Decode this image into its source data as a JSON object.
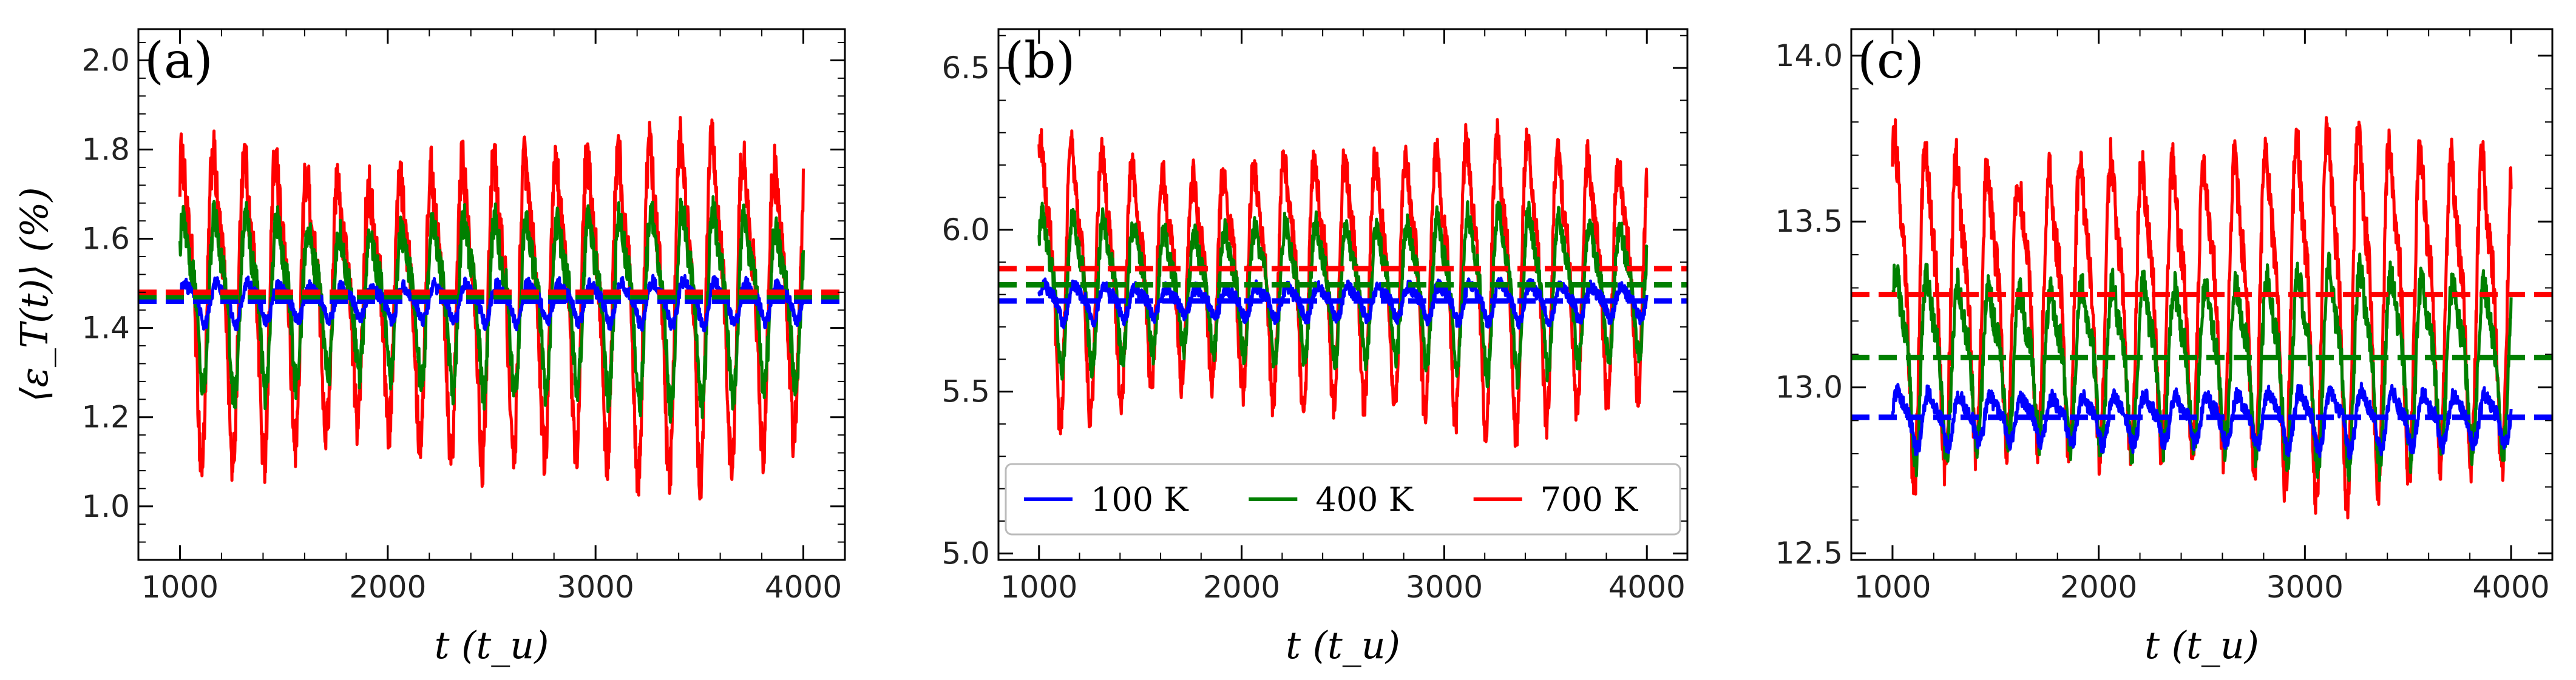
{
  "chart_data": [
    {
      "type": "line",
      "panel_label": "(a)",
      "xlabel": "t (t_u)",
      "ylabel": "⟨ε_T(t)⟩ (%)",
      "xlim": [
        800,
        4200
      ],
      "ylim": [
        0.88,
        2.07
      ],
      "xticks": [
        1000,
        2000,
        3000,
        4000
      ],
      "yticks": [
        1.0,
        1.2,
        1.4,
        1.6,
        1.8,
        2.0
      ],
      "ytick_labels": [
        "1.0",
        "1.2",
        "1.4",
        "1.6",
        "1.8",
        "2.0"
      ],
      "x_range": [
        1000,
        4000
      ],
      "period": 150,
      "series": [
        {
          "name": "100 K",
          "color": "#0000ff",
          "mean": 1.46,
          "amplitude": 0.05,
          "noise": 0.015
        },
        {
          "name": "400 K",
          "color": "#008000",
          "mean": 1.47,
          "amplitude": 0.22,
          "noise": 0.04
        },
        {
          "name": "700 K",
          "color": "#ff0000",
          "mean": 1.48,
          "amplitude": 0.38,
          "noise": 0.06
        }
      ]
    },
    {
      "type": "line",
      "panel_label": "(b)",
      "xlabel": "t (t_u)",
      "ylabel": "",
      "xlim": [
        800,
        4200
      ],
      "ylim": [
        4.98,
        6.62
      ],
      "xticks": [
        1000,
        2000,
        3000,
        4000
      ],
      "yticks": [
        5.0,
        5.5,
        6.0,
        6.5
      ],
      "ytick_labels": [
        "5.0",
        "5.5",
        "6.0",
        "6.5"
      ],
      "x_range": [
        1000,
        4000
      ],
      "period": 150,
      "legend": {
        "position": "lower-center",
        "entries": [
          "100 K",
          "400 K",
          "700 K"
        ]
      },
      "series": [
        {
          "name": "100 K",
          "color": "#0000ff",
          "mean": 5.78,
          "amplitude": 0.06,
          "noise": 0.02
        },
        {
          "name": "400 K",
          "color": "#008000",
          "mean": 5.83,
          "amplitude": 0.25,
          "noise": 0.04
        },
        {
          "name": "700 K",
          "color": "#ff0000",
          "mean": 5.88,
          "amplitude": 0.45,
          "noise": 0.06
        }
      ]
    },
    {
      "type": "line",
      "panel_label": "(c)",
      "xlabel": "t (t_u)",
      "ylabel": "",
      "xlim": [
        800,
        4200
      ],
      "ylim": [
        12.48,
        14.08
      ],
      "xticks": [
        1000,
        2000,
        3000,
        4000
      ],
      "yticks": [
        12.5,
        13.0,
        13.5,
        14.0
      ],
      "ytick_labels": [
        "12.5",
        "13.0",
        "13.5",
        "14.0"
      ],
      "x_range": [
        1000,
        4000
      ],
      "period": 150,
      "series": [
        {
          "name": "100 K",
          "color": "#0000ff",
          "mean": 12.91,
          "amplitude": 0.09,
          "noise": 0.025
        },
        {
          "name": "400 K",
          "color": "#008000",
          "mean": 13.09,
          "amplitude": 0.3,
          "noise": 0.05
        },
        {
          "name": "700 K",
          "color": "#ff0000",
          "mean": 13.28,
          "amplitude": 0.55,
          "noise": 0.07
        }
      ]
    }
  ]
}
